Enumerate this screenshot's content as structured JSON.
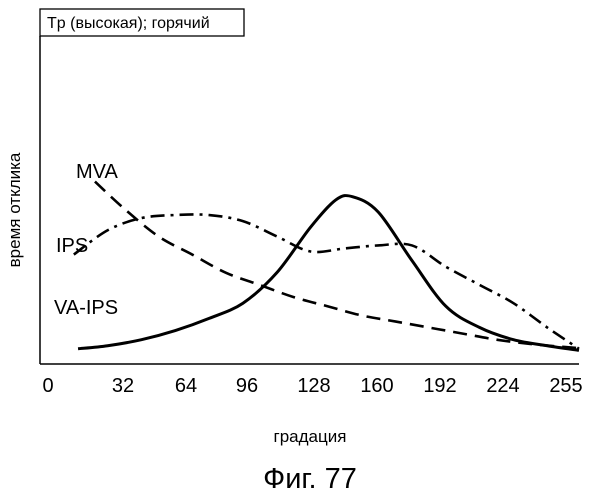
{
  "chart_data": {
    "type": "line",
    "legend_box": "Tp (высокая); горячий",
    "xlabel": "градация",
    "ylabel": "время отклика",
    "caption": "Фиг. 77",
    "xlim": [
      0,
      255
    ],
    "ylim": [
      0,
      1
    ],
    "x_ticks": [
      0,
      32,
      64,
      96,
      128,
      160,
      192,
      224,
      255
    ],
    "x_tick_labels": [
      "0",
      "32",
      "64",
      "96",
      "128",
      "160",
      "192",
      "224",
      "255"
    ],
    "grid": false,
    "series": [
      {
        "name": "MVA",
        "style": "dashed",
        "points": [
          [
            26,
            0.6
          ],
          [
            40,
            0.51
          ],
          [
            56,
            0.42
          ],
          [
            72,
            0.36
          ],
          [
            88,
            0.3
          ],
          [
            104,
            0.26
          ],
          [
            120,
            0.22
          ],
          [
            136,
            0.19
          ],
          [
            152,
            0.16
          ],
          [
            168,
            0.14
          ],
          [
            184,
            0.12
          ],
          [
            200,
            0.1
          ],
          [
            216,
            0.08
          ],
          [
            232,
            0.066
          ],
          [
            248,
            0.056
          ],
          [
            255,
            0.052
          ]
        ]
      },
      {
        "name": "IPS",
        "style": "dash-dot",
        "points": [
          [
            16,
            0.36
          ],
          [
            32,
            0.44
          ],
          [
            48,
            0.48
          ],
          [
            64,
            0.49
          ],
          [
            80,
            0.49
          ],
          [
            96,
            0.47
          ],
          [
            112,
            0.42
          ],
          [
            128,
            0.37
          ],
          [
            144,
            0.38
          ],
          [
            160,
            0.39
          ],
          [
            176,
            0.39
          ],
          [
            192,
            0.32
          ],
          [
            208,
            0.26
          ],
          [
            224,
            0.2
          ],
          [
            240,
            0.12
          ],
          [
            255,
            0.05
          ]
        ]
      },
      {
        "name": "VA-IPS",
        "style": "solid",
        "points": [
          [
            18,
            0.05
          ],
          [
            32,
            0.06
          ],
          [
            48,
            0.08
          ],
          [
            64,
            0.11
          ],
          [
            80,
            0.15
          ],
          [
            96,
            0.2
          ],
          [
            112,
            0.3
          ],
          [
            128,
            0.45
          ],
          [
            140,
            0.54
          ],
          [
            148,
            0.55
          ],
          [
            160,
            0.5
          ],
          [
            176,
            0.34
          ],
          [
            192,
            0.19
          ],
          [
            208,
            0.12
          ],
          [
            224,
            0.08
          ],
          [
            240,
            0.06
          ],
          [
            255,
            0.045
          ]
        ]
      }
    ]
  }
}
